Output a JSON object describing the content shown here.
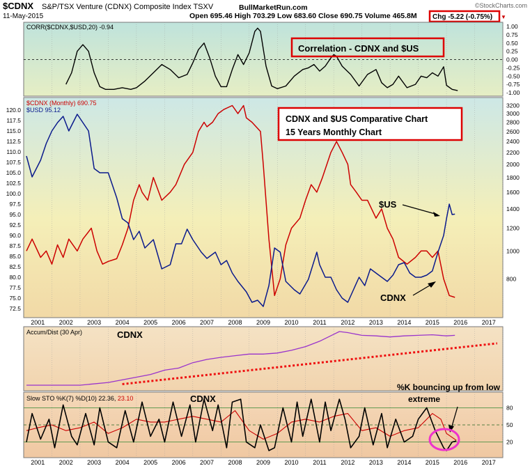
{
  "header": {
    "symbol": "$CDNX",
    "description": "S&P/TSX Venture (CDNX) Composite Index  TSXV",
    "date": "11-May-2015",
    "watermark": "©StockCharts.com",
    "site": "BullMarketRun.com",
    "quote": "Open 695.46  High 703.29  Low 683.60  Close 690.75  Volume 465.8M",
    "change": "Chg -5.22 (-0.75%)",
    "change_arrow": "▼"
  },
  "colors": {
    "red": "#cc0000",
    "blue": "#0a1a8c",
    "black": "#000000",
    "purple": "#9933cc",
    "magenta": "#ee33cc",
    "grid": "#888888"
  },
  "x_axis_years": [
    "2001",
    "2002",
    "2003",
    "2004",
    "2005",
    "2006",
    "2007",
    "2008",
    "2009",
    "2010",
    "2011",
    "2012",
    "2013",
    "2014",
    "2015",
    "2016",
    "2017"
  ],
  "chart_data": [
    {
      "type": "line",
      "panel": "correlation",
      "legend": "CORR($CDNX,$USD,20) -0.94",
      "annotation": "Correlation - CDNX and $US",
      "ylim": [
        -1.0,
        1.0
      ],
      "yticks": [
        "1.00",
        "0.75",
        "0.50",
        "0.25",
        "0.00",
        "-0.25",
        "-0.50",
        "-0.75",
        "-1.00"
      ],
      "x": [
        2001.5,
        2001.7,
        2001.9,
        2002.1,
        2002.3,
        2002.5,
        2002.7,
        2002.9,
        2003.2,
        2003.5,
        2003.8,
        2004.0,
        2004.3,
        2004.6,
        2004.9,
        2005.2,
        2005.5,
        2005.8,
        2006.0,
        2006.2,
        2006.4,
        2006.6,
        2006.8,
        2007.0,
        2007.2,
        2007.4,
        2007.6,
        2007.8,
        2008.0,
        2008.2,
        2008.3,
        2008.4,
        2008.6,
        2008.8,
        2009.0,
        2009.3,
        2009.6,
        2009.9,
        2010.1,
        2010.3,
        2010.5,
        2010.7,
        2010.9,
        2011.0,
        2011.1,
        2011.3,
        2011.6,
        2011.9,
        2012.2,
        2012.5,
        2012.7,
        2012.9,
        2013.1,
        2013.3,
        2013.6,
        2013.9,
        2014.1,
        2014.3,
        2014.5,
        2014.7,
        2014.9,
        2015.0,
        2015.2,
        2015.4
      ],
      "values": [
        -0.75,
        -0.4,
        0.25,
        0.45,
        0.25,
        -0.4,
        -0.82,
        -0.9,
        -0.9,
        -0.85,
        -0.9,
        -0.85,
        -0.65,
        -0.4,
        -0.15,
        -0.3,
        -0.55,
        -0.45,
        -0.1,
        0.3,
        0.5,
        0.05,
        -0.5,
        -0.82,
        -0.82,
        -0.3,
        0.15,
        -0.15,
        0.2,
        0.85,
        0.95,
        0.85,
        -0.2,
        -0.8,
        -0.88,
        -0.8,
        -0.5,
        -0.3,
        -0.25,
        -0.15,
        -0.35,
        -0.2,
        0.05,
        0.15,
        0.1,
        -0.2,
        -0.45,
        -0.8,
        -0.45,
        -0.3,
        -0.7,
        -0.85,
        -0.75,
        -0.5,
        -0.85,
        -0.75,
        -0.5,
        -0.55,
        -0.4,
        -0.5,
        -0.22,
        -0.78,
        -0.9,
        -0.94
      ]
    },
    {
      "type": "line",
      "panel": "price",
      "legend": [
        "$CDNX (Monthly) 690.75",
        "$USD 95.12"
      ],
      "annotation_title": [
        "CDNX and $US Comparative Chart",
        "15 Years Monthly Chart"
      ],
      "label_us": "$US",
      "label_cdnx": "CDNX",
      "y_left_ticks": [
        "120.0",
        "117.5",
        "115.0",
        "112.5",
        "110.0",
        "107.5",
        "105.0",
        "102.5",
        "100.0",
        "97.5",
        "95.0",
        "92.5",
        "90.0",
        "87.5",
        "85.0",
        "82.5",
        "80.0",
        "77.5",
        "75.0",
        "72.5"
      ],
      "y_right_ticks": [
        "3200",
        "3000",
        "2800",
        "2600",
        "2400",
        "2200",
        "2000",
        "1800",
        "1600",
        "1400",
        "1200",
        "1000",
        "800"
      ],
      "y_left_range": [
        71.0,
        122.0
      ],
      "y_right_range": [
        600,
        3300
      ],
      "y_right_scale": "log",
      "series": [
        {
          "name": "$CDNX (Monthly) 690.75",
          "color": "#cc0000",
          "x": [
            2000.1,
            2000.3,
            2000.6,
            2000.8,
            2001.0,
            2001.2,
            2001.4,
            2001.6,
            2001.9,
            2002.1,
            2002.4,
            2002.6,
            2002.8,
            2003.0,
            2003.3,
            2003.5,
            2003.7,
            2003.9,
            2004.1,
            2004.2,
            2004.4,
            2004.6,
            2004.9,
            2005.2,
            2005.4,
            2005.7,
            2006.0,
            2006.2,
            2006.4,
            2006.5,
            2006.7,
            2006.9,
            2007.1,
            2007.4,
            2007.6,
            2007.8,
            2007.9,
            2008.1,
            2008.4,
            2008.5,
            2008.7,
            2008.9,
            2009.1,
            2009.3,
            2009.5,
            2009.8,
            2010.0,
            2010.2,
            2010.4,
            2010.6,
            2010.9,
            2011.1,
            2011.3,
            2011.5,
            2011.6,
            2011.8,
            2012.0,
            2012.2,
            2012.5,
            2012.7,
            2012.9,
            2013.1,
            2013.3,
            2013.6,
            2013.9,
            2014.1,
            2014.3,
            2014.5,
            2014.7,
            2014.9,
            2015.1,
            2015.3
          ],
          "values": [
            1000,
            1100,
            950,
            1000,
            900,
            1050,
            950,
            1100,
            1000,
            1100,
            1200,
            1000,
            900,
            920,
            940,
            1050,
            1200,
            1500,
            1700,
            1600,
            1500,
            1800,
            1500,
            1600,
            1700,
            2000,
            2200,
            2600,
            2800,
            2700,
            2800,
            3000,
            3100,
            3200,
            3000,
            3200,
            2900,
            2800,
            2600,
            2000,
            1100,
            700,
            800,
            1050,
            1200,
            1300,
            1500,
            1700,
            1600,
            1800,
            2200,
            2400,
            2200,
            2000,
            1700,
            1600,
            1500,
            1500,
            1300,
            1400,
            1200,
            1100,
            950,
            900,
            950,
            1000,
            1000,
            950,
            1000,
            800,
            700,
            690
          ]
        },
        {
          "name": "$USD 95.12",
          "color": "#0a1a8c",
          "x": [
            2000.1,
            2000.3,
            2000.6,
            2000.8,
            2001.0,
            2001.2,
            2001.4,
            2001.6,
            2001.9,
            2002.1,
            2002.3,
            2002.5,
            2002.7,
            2003.0,
            2003.3,
            2003.5,
            2003.7,
            2003.9,
            2004.1,
            2004.3,
            2004.6,
            2004.9,
            2005.2,
            2005.4,
            2005.6,
            2005.8,
            2006.0,
            2006.3,
            2006.5,
            2006.8,
            2007.0,
            2007.2,
            2007.4,
            2007.6,
            2007.9,
            2008.1,
            2008.3,
            2008.5,
            2008.7,
            2008.9,
            2009.1,
            2009.3,
            2009.6,
            2009.8,
            2010.1,
            2010.4,
            2010.5,
            2010.7,
            2010.9,
            2011.1,
            2011.3,
            2011.5,
            2011.7,
            2011.9,
            2012.1,
            2012.3,
            2012.5,
            2012.7,
            2012.9,
            2013.1,
            2013.3,
            2013.5,
            2013.7,
            2013.9,
            2014.1,
            2014.3,
            2014.5,
            2014.7,
            2014.9,
            2015.0,
            2015.1,
            2015.2,
            2015.3
          ],
          "values": [
            109.0,
            104.0,
            108.0,
            112.0,
            115.0,
            117.0,
            118.5,
            115.0,
            119.0,
            117.0,
            115.0,
            106.0,
            105.0,
            105.0,
            99.0,
            94.0,
            93.0,
            89.0,
            91.0,
            87.0,
            89.0,
            82.0,
            83.0,
            88.0,
            88.0,
            91.5,
            89.0,
            86.0,
            84.5,
            86.0,
            83.0,
            84.0,
            81.0,
            79.0,
            76.5,
            74.0,
            74.5,
            73.0,
            78.0,
            87.0,
            86.0,
            79.0,
            77.0,
            76.0,
            79.5,
            86.0,
            83.0,
            80.0,
            80.0,
            77.0,
            75.0,
            74.0,
            77.0,
            80.0,
            78.0,
            82.0,
            81.0,
            80.0,
            79.0,
            80.5,
            83.0,
            83.5,
            81.0,
            80.0,
            80.0,
            80.5,
            81.5,
            86.0,
            90.0,
            94.0,
            97.5,
            95.0,
            95.1
          ]
        }
      ]
    },
    {
      "type": "line",
      "panel": "accum_dist",
      "legend": "Accum/Dist (30 Apr)",
      "annotation": "CDNX",
      "x": [
        2000.1,
        2001.0,
        2002.0,
        2003.0,
        2004.0,
        2004.5,
        2005.0,
        2005.5,
        2006.0,
        2006.5,
        2007.0,
        2007.5,
        2008.0,
        2008.5,
        2009.0,
        2009.5,
        2010.0,
        2010.5,
        2011.0,
        2011.2,
        2011.5,
        2012.0,
        2012.5,
        2013.0,
        2013.5,
        2014.0,
        2014.5,
        2015.0,
        2015.3
      ],
      "values": [
        0,
        0,
        0,
        0.05,
        0.15,
        0.2,
        0.28,
        0.32,
        0.42,
        0.48,
        0.52,
        0.55,
        0.58,
        0.58,
        0.6,
        0.65,
        0.72,
        0.82,
        0.95,
        1.0,
        0.98,
        0.93,
        0.92,
        0.9,
        0.92,
        0.93,
        0.94,
        0.92,
        0.93
      ],
      "trendline": {
        "x": [
          2003.5,
          2016.8
        ],
        "values": [
          0.02,
          0.78
        ]
      }
    },
    {
      "type": "line",
      "panel": "slow_stochastic",
      "legend_prefix": "Slow STO %K(7) %D(10) 22.36,",
      "legend_d_value": "23.10",
      "annotation": "CDNX",
      "note": [
        "%K bouncing up from low",
        "extreme"
      ],
      "ylim": [
        0,
        100
      ],
      "yticks": [
        "80",
        "50",
        "20"
      ],
      "series": [
        {
          "name": "%K",
          "color": "#000000",
          "x": [
            2000.1,
            2000.3,
            2000.6,
            2000.9,
            2001.1,
            2001.4,
            2001.7,
            2001.9,
            2002.2,
            2002.5,
            2002.7,
            2003.0,
            2003.3,
            2003.6,
            2003.9,
            2004.2,
            2004.5,
            2004.8,
            2005.0,
            2005.3,
            2005.6,
            2005.9,
            2006.1,
            2006.4,
            2006.7,
            2006.9,
            2007.2,
            2007.4,
            2007.7,
            2007.9,
            2008.2,
            2008.4,
            2008.7,
            2008.9,
            2009.2,
            2009.5,
            2009.7,
            2009.9,
            2010.2,
            2010.5,
            2010.7,
            2010.9,
            2011.2,
            2011.4,
            2011.6,
            2011.9,
            2012.1,
            2012.4,
            2012.7,
            2012.9,
            2013.2,
            2013.5,
            2013.8,
            2014.0,
            2014.3,
            2014.6,
            2014.9,
            2015.0,
            2015.2,
            2015.35
          ],
          "values": [
            20,
            70,
            25,
            60,
            10,
            85,
            30,
            15,
            70,
            15,
            80,
            20,
            10,
            75,
            20,
            90,
            30,
            60,
            20,
            90,
            30,
            85,
            20,
            95,
            40,
            85,
            10,
            90,
            95,
            20,
            10,
            50,
            5,
            10,
            80,
            20,
            90,
            30,
            95,
            20,
            90,
            40,
            95,
            60,
            10,
            30,
            80,
            15,
            70,
            10,
            60,
            20,
            30,
            60,
            80,
            40,
            10,
            5,
            20,
            22
          ]
        },
        {
          "name": "%D",
          "color": "#cc0000",
          "x": [
            2000.1,
            2000.5,
            2001.0,
            2001.5,
            2002.0,
            2002.5,
            2003.0,
            2003.5,
            2004.0,
            2004.5,
            2005.0,
            2005.5,
            2006.0,
            2006.5,
            2007.0,
            2007.5,
            2008.0,
            2008.5,
            2009.0,
            2009.5,
            2010.0,
            2010.5,
            2011.0,
            2011.5,
            2012.0,
            2012.5,
            2013.0,
            2013.5,
            2014.0,
            2014.5,
            2014.8,
            2015.0,
            2015.35
          ],
          "values": [
            40,
            45,
            50,
            40,
            45,
            55,
            35,
            45,
            60,
            55,
            55,
            60,
            65,
            60,
            55,
            75,
            40,
            25,
            35,
            55,
            60,
            55,
            65,
            70,
            40,
            45,
            30,
            40,
            45,
            70,
            60,
            35,
            23
          ]
        }
      ]
    }
  ]
}
